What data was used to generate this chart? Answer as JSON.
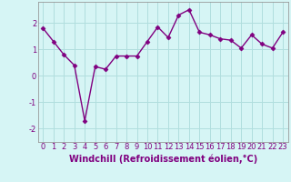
{
  "x": [
    0,
    1,
    2,
    3,
    4,
    5,
    6,
    7,
    8,
    9,
    10,
    11,
    12,
    13,
    14,
    15,
    16,
    17,
    18,
    19,
    20,
    21,
    22,
    23
  ],
  "y": [
    1.8,
    1.3,
    0.8,
    0.4,
    -1.7,
    0.35,
    0.25,
    0.75,
    0.75,
    0.75,
    1.3,
    1.85,
    1.45,
    2.3,
    2.5,
    1.65,
    1.55,
    1.4,
    1.35,
    1.05,
    1.55,
    1.2,
    1.05,
    1.65
  ],
  "line_color": "#800080",
  "marker": "D",
  "marker_size": 2.5,
  "bg_color": "#d6f5f5",
  "grid_color": "#b0dede",
  "xlabel": "Windchill (Refroidissement éolien,°C)",
  "ylim": [
    -2.5,
    2.8
  ],
  "xlim": [
    -0.5,
    23.5
  ],
  "yticks": [
    -2,
    -1,
    0,
    1,
    2
  ],
  "xticks": [
    0,
    1,
    2,
    3,
    4,
    5,
    6,
    7,
    8,
    9,
    10,
    11,
    12,
    13,
    14,
    15,
    16,
    17,
    18,
    19,
    20,
    21,
    22,
    23
  ],
  "xlabel_fontsize": 7,
  "tick_fontsize": 6,
  "line_width": 1.0
}
